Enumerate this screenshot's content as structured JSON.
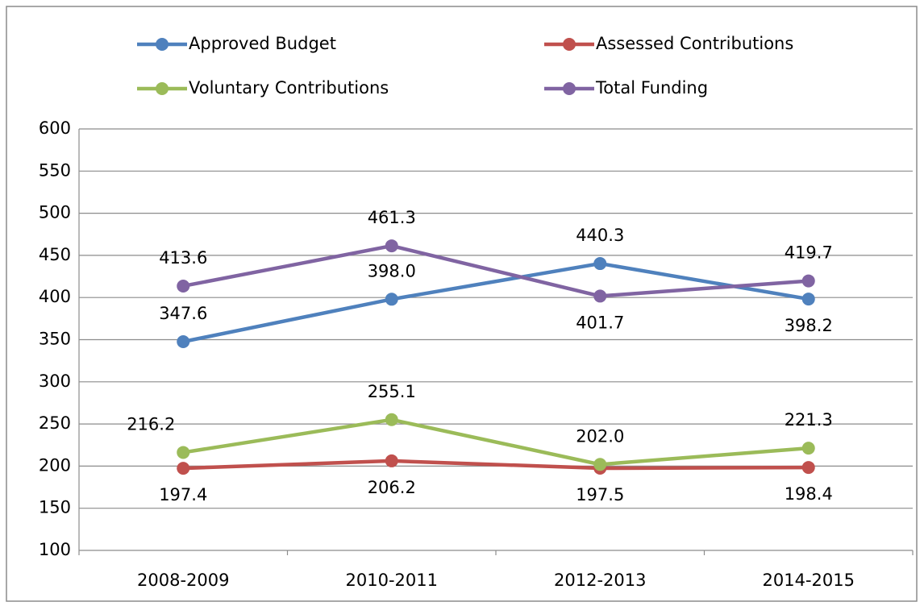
{
  "chart_data": {
    "type": "line",
    "categories": [
      "2008-2009",
      "2010-2011",
      "2012-2013",
      "2014-2015"
    ],
    "series": [
      {
        "name": "Approved Budget",
        "color": "#4f81bd",
        "values": [
          347.6,
          398.0,
          440.3,
          398.2
        ],
        "value_labels": [
          "347.6",
          "398.0",
          "440.3",
          "398.2"
        ]
      },
      {
        "name": "Assessed Contributions",
        "color": "#c0504d",
        "values": [
          197.4,
          206.2,
          197.5,
          198.4
        ],
        "value_labels": [
          "197.4",
          "206.2",
          "197.5",
          "198.4"
        ]
      },
      {
        "name": "Voluntary Contributions",
        "color": "#9bbb59",
        "values": [
          216.2,
          255.1,
          202.0,
          221.3
        ],
        "value_labels": [
          "216.2",
          "255.1",
          "202.0",
          "221.3"
        ]
      },
      {
        "name": "Total Funding",
        "color": "#8064a2",
        "values": [
          413.6,
          461.3,
          401.7,
          419.7
        ],
        "value_labels": [
          "413.6",
          "461.3",
          "401.7",
          "419.7"
        ]
      }
    ],
    "ylim": [
      100,
      600
    ],
    "yticks": [
      100,
      150,
      200,
      250,
      300,
      350,
      400,
      450,
      500,
      550,
      600
    ],
    "grid": true,
    "legend": "top"
  }
}
